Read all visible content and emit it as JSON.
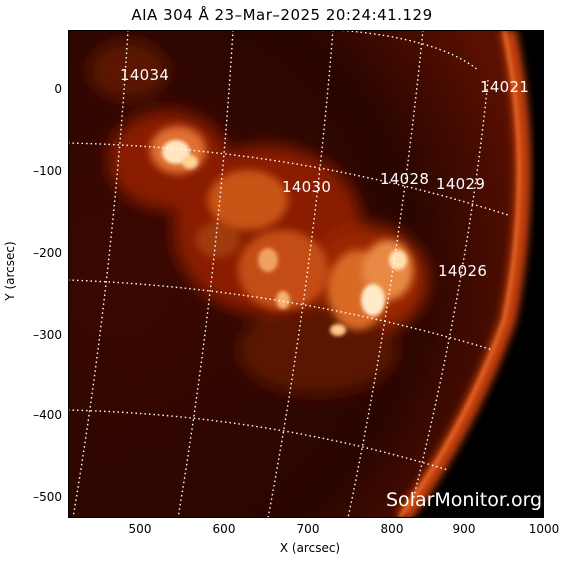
{
  "title": "AIA 304 Å 23–Mar–2025 20:24:41.129",
  "axes": {
    "ylabel": "Y (arcsec)",
    "xlabel": "X (arcsec)",
    "yticks": [
      "0",
      "–100",
      "–200",
      "–300",
      "–400",
      "–500"
    ],
    "xticks": [
      "500",
      "600",
      "700",
      "800",
      "900",
      "1000"
    ]
  },
  "regions": [
    "14034",
    "14021",
    "14030",
    "14028",
    "14029",
    "14026"
  ],
  "watermark": "SolarMonitor.org",
  "colors": {
    "background": "#140100",
    "limb": "#d24a0e",
    "bright": "#ffe9c8"
  }
}
